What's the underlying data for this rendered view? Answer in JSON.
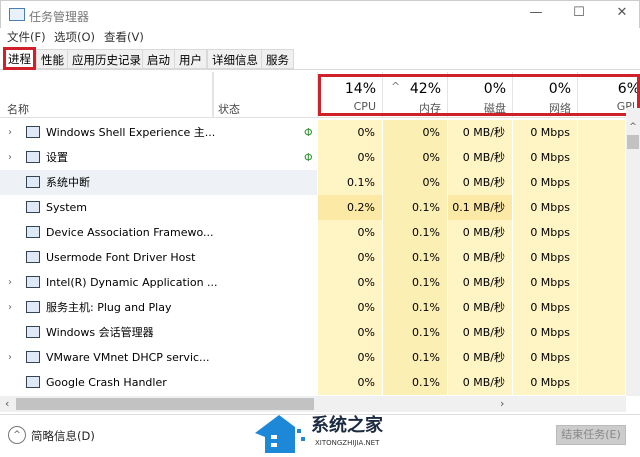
{
  "window": {
    "title": "任务管理器",
    "minimize": "—",
    "maximize": "☐",
    "close": "✕"
  },
  "menu": [
    "文件(F)",
    "选项(O)",
    "查看(V)"
  ],
  "tabs": [
    "进程",
    "性能",
    "应用历史记录",
    "启动",
    "用户",
    "详细信息",
    "服务"
  ],
  "active_tab": "进程",
  "header": {
    "name": "名称",
    "status": "状态",
    "sort_indicator": "^",
    "columns": [
      {
        "pct": "14%",
        "label": "CPU"
      },
      {
        "pct": "42%",
        "label": "内存"
      },
      {
        "pct": "0%",
        "label": "磁盘"
      },
      {
        "pct": "0%",
        "label": "网络"
      },
      {
        "pct": "6%",
        "label": "GPU"
      }
    ]
  },
  "rows": [
    {
      "name": "Windows Shell Experience 主...",
      "expand": true,
      "leaf": true,
      "cpu": "0%",
      "mem": "0%",
      "disk": "0 MB/秒",
      "net": "0 Mbps"
    },
    {
      "name": "设置",
      "expand": true,
      "leaf": true,
      "cpu": "0%",
      "mem": "0%",
      "disk": "0 MB/秒",
      "net": "0 Mbps"
    },
    {
      "name": "系统中断",
      "expand": false,
      "leaf": false,
      "cpu": "0.1%",
      "mem": "0%",
      "disk": "0 MB/秒",
      "net": "0 Mbps",
      "selected": true
    },
    {
      "name": "System",
      "expand": false,
      "leaf": false,
      "cpu": "0.2%",
      "mem": "0.1%",
      "disk": "0.1 MB/秒",
      "net": "0 Mbps"
    },
    {
      "name": "Device Association Framewo...",
      "expand": false,
      "leaf": false,
      "cpu": "0%",
      "mem": "0.1%",
      "disk": "0 MB/秒",
      "net": "0 Mbps"
    },
    {
      "name": "Usermode Font Driver Host",
      "expand": false,
      "leaf": false,
      "cpu": "0%",
      "mem": "0.1%",
      "disk": "0 MB/秒",
      "net": "0 Mbps"
    },
    {
      "name": "Intel(R) Dynamic Application ...",
      "expand": true,
      "leaf": false,
      "cpu": "0%",
      "mem": "0.1%",
      "disk": "0 MB/秒",
      "net": "0 Mbps"
    },
    {
      "name": "服务主机: Plug and Play",
      "expand": true,
      "leaf": false,
      "cpu": "0%",
      "mem": "0.1%",
      "disk": "0 MB/秒",
      "net": "0 Mbps"
    },
    {
      "name": "Windows 会话管理器",
      "expand": false,
      "leaf": false,
      "cpu": "0%",
      "mem": "0.1%",
      "disk": "0 MB/秒",
      "net": "0 Mbps"
    },
    {
      "name": "VMware VMnet DHCP servic...",
      "expand": true,
      "leaf": false,
      "cpu": "0%",
      "mem": "0.1%",
      "disk": "0 MB/秒",
      "net": "0 Mbps"
    },
    {
      "name": "Google Crash Handler",
      "expand": false,
      "leaf": false,
      "cpu": "0%",
      "mem": "0.1%",
      "disk": "0 MB/秒",
      "net": "0 Mbps"
    }
  ],
  "footer": {
    "brief": "简略信息(D)",
    "end_task": "结束任务(E)"
  },
  "watermark": {
    "title": "系统之家",
    "sub": "XITONGZHIJIA.NET"
  },
  "colors": {
    "highlight": "#d0202a",
    "cpu_bg": "#fff4c4",
    "mem_bg": "#fcefb4",
    "sel_bg": "#eef2f6"
  }
}
